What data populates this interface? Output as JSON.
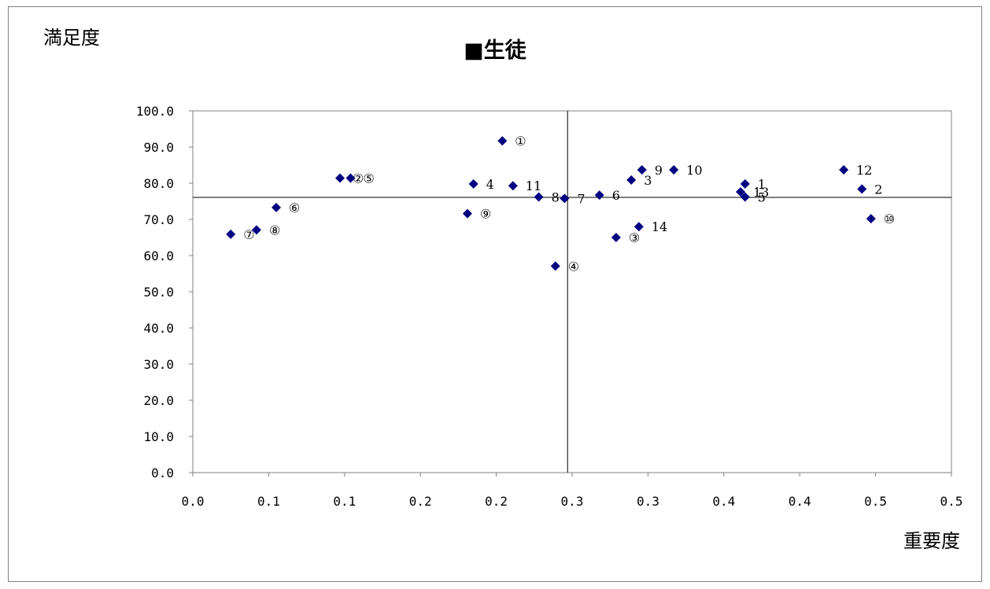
{
  "chart_data": {
    "type": "scatter",
    "title": "■生徒",
    "xlabel": "重要度",
    "ylabel": "満足度",
    "xlim": [
      0.0,
      0.5
    ],
    "ylim": [
      0.0,
      100.0
    ],
    "x_ticks": [
      "0.0",
      "0.1",
      "0.1",
      "0.2",
      "0.2",
      "0.3",
      "0.3",
      "0.4",
      "0.4",
      "0.5",
      "0.5"
    ],
    "y_ticks": [
      "0.0",
      "10.0",
      "20.0",
      "30.0",
      "40.0",
      "50.0",
      "60.0",
      "70.0",
      "80.0",
      "90.0",
      "100.0"
    ],
    "reference_lines": {
      "x": 0.247,
      "y": 76.1
    },
    "marker_color": "#000080",
    "grid": false,
    "points": [
      {
        "label": "①",
        "x": 0.204,
        "y": 91.7
      },
      {
        "label": "②",
        "x": 0.097,
        "y": 81.4
      },
      {
        "label": "⑤",
        "x": 0.104,
        "y": 81.4
      },
      {
        "label": "③",
        "x": 0.279,
        "y": 65.0
      },
      {
        "label": "④",
        "x": 0.239,
        "y": 57.1
      },
      {
        "label": "⑥",
        "x": 0.055,
        "y": 73.3
      },
      {
        "label": "⑦",
        "x": 0.025,
        "y": 65.9
      },
      {
        "label": "⑧",
        "x": 0.042,
        "y": 67.1
      },
      {
        "label": "⑨",
        "x": 0.181,
        "y": 71.6
      },
      {
        "label": "⑩",
        "x": 0.447,
        "y": 70.2
      },
      {
        "label": "1",
        "x": 0.364,
        "y": 79.8
      },
      {
        "label": "2",
        "x": 0.441,
        "y": 78.4
      },
      {
        "label": "3",
        "x": 0.289,
        "y": 80.9
      },
      {
        "label": "4",
        "x": 0.185,
        "y": 79.8
      },
      {
        "label": "5",
        "x": 0.364,
        "y": 76.2
      },
      {
        "label": "6",
        "x": 0.268,
        "y": 76.7
      },
      {
        "label": "7",
        "x": 0.245,
        "y": 75.8
      },
      {
        "label": "8",
        "x": 0.228,
        "y": 76.2
      },
      {
        "label": "9",
        "x": 0.296,
        "y": 83.7
      },
      {
        "label": "10",
        "x": 0.317,
        "y": 83.7
      },
      {
        "label": "11",
        "x": 0.211,
        "y": 79.3
      },
      {
        "label": "12",
        "x": 0.429,
        "y": 83.7
      },
      {
        "label": "13",
        "x": 0.361,
        "y": 77.6
      },
      {
        "label": "14",
        "x": 0.294,
        "y": 68.0
      }
    ]
  }
}
